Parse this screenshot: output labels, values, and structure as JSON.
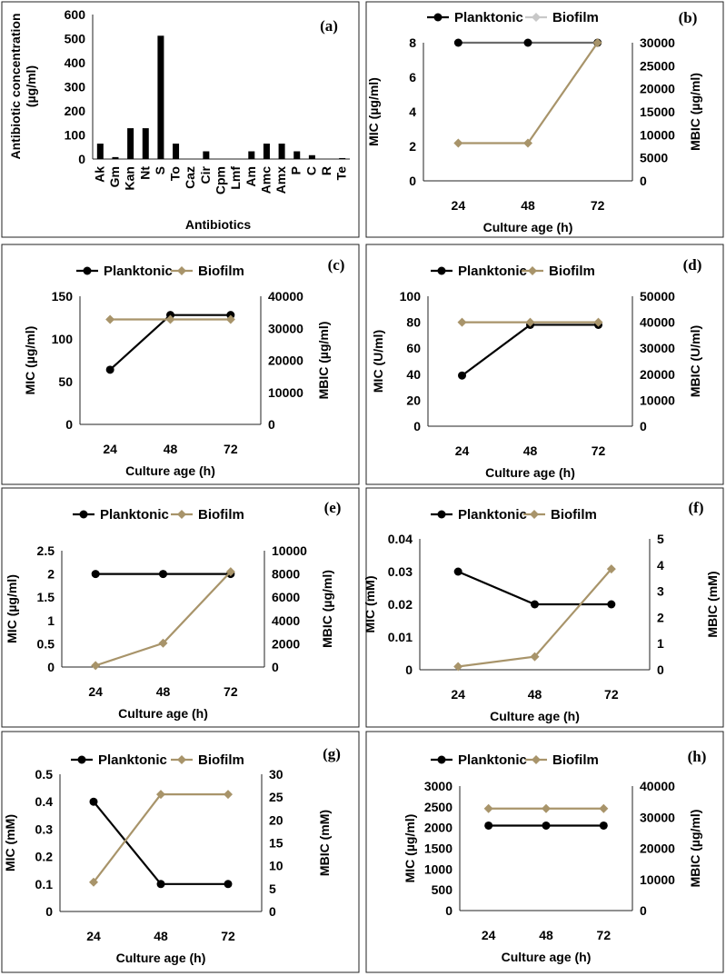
{
  "chart_data": [
    {
      "panel": "(a)",
      "type": "bar",
      "categories": [
        "Ak",
        "Gm",
        "Kan",
        "Nt",
        "S",
        "To",
        "Caz",
        "Cir",
        "Cpm",
        "Lmf",
        "Am",
        "Amc",
        "Amx",
        "P",
        "C",
        "R",
        "Te"
      ],
      "values": [
        64,
        8,
        128,
        128,
        512,
        64,
        0,
        32,
        0,
        0,
        32,
        64,
        64,
        32,
        16,
        0,
        4
      ],
      "title": "",
      "xlabel": "Antibiotics",
      "ylabel_lines": [
        "Antibiotic concentration",
        "(µg/ml)"
      ],
      "ylim": [
        0,
        600
      ],
      "yticks": [
        "0",
        "100",
        "200",
        "300",
        "400",
        "500",
        "600"
      ],
      "color": "#000000"
    },
    {
      "panel": "(b)",
      "type": "line",
      "x": [
        "24",
        "48",
        "72"
      ],
      "xlabel": "Culture age (h)",
      "ylabel_left": "MIC (µg/ml)",
      "ylabel_right": "MBIC (µg/ml)",
      "ylim_left": [
        0,
        8
      ],
      "yticks_left": [
        "0",
        "2",
        "4",
        "6",
        "8"
      ],
      "ylim_right": [
        0,
        30000
      ],
      "yticks_right": [
        "0",
        "5000",
        "10000",
        "15000",
        "20000",
        "25000",
        "30000"
      ],
      "series": [
        {
          "name": "Planktonic",
          "axis": "left",
          "values": [
            8,
            8,
            8
          ],
          "color": "#000000",
          "line_color": "#6b6b6b",
          "marker": "circle"
        },
        {
          "name": "Biofilm",
          "axis": "right",
          "values": [
            8192,
            8192,
            30000
          ],
          "color": "#a8946a",
          "legend_color": "#c8c8c8",
          "marker": "diamond"
        }
      ]
    },
    {
      "panel": "(c)",
      "type": "line",
      "x": [
        "24",
        "48",
        "72"
      ],
      "xlabel": "Culture age (h)",
      "ylabel_left": "MIC (µg/ml)",
      "ylabel_right": "MBIC (µg/ml)",
      "ylim_left": [
        0,
        150
      ],
      "yticks_left": [
        "0",
        "50",
        "100",
        "150"
      ],
      "ylim_right": [
        0,
        40000
      ],
      "yticks_right": [
        "0",
        "10000",
        "20000",
        "30000",
        "40000"
      ],
      "series": [
        {
          "name": "Planktonic",
          "axis": "left",
          "values": [
            64,
            128,
            128
          ],
          "color": "#000000",
          "marker": "circle"
        },
        {
          "name": "Biofilm",
          "axis": "right",
          "values": [
            32768,
            32768,
            32768
          ],
          "color": "#a8946a",
          "marker": "diamond"
        }
      ]
    },
    {
      "panel": "(d)",
      "type": "line",
      "x": [
        "24",
        "48",
        "72"
      ],
      "xlabel": "Culture age (h)",
      "ylabel_left": "MIC (U/ml)",
      "ylabel_right": "MBIC (U/ml)",
      "ylim_left": [
        0,
        100
      ],
      "yticks_left": [
        "0",
        "20",
        "40",
        "60",
        "80",
        "100"
      ],
      "ylim_right": [
        0,
        50000
      ],
      "yticks_right": [
        "0",
        "10000",
        "20000",
        "30000",
        "40000",
        "50000"
      ],
      "series": [
        {
          "name": "Planktonic",
          "axis": "left",
          "values": [
            39,
            78,
            78
          ],
          "color": "#000000",
          "marker": "circle"
        },
        {
          "name": "Biofilm",
          "axis": "right",
          "values": [
            40000,
            40000,
            40000
          ],
          "color": "#a8946a",
          "marker": "diamond"
        }
      ]
    },
    {
      "panel": "(e)",
      "type": "line",
      "x": [
        "24",
        "48",
        "72"
      ],
      "xlabel": "Culture age (h)",
      "ylabel_left": "MIC (µg/ml)",
      "ylabel_right": "MBIC (µg/ml)",
      "ylim_left": [
        0,
        2.5
      ],
      "yticks_left": [
        "0",
        "0.5",
        "1",
        "1.5",
        "2",
        "2.5"
      ],
      "ylim_right": [
        0,
        10000
      ],
      "yticks_right": [
        "0",
        "2000",
        "4000",
        "6000",
        "8000",
        "10000"
      ],
      "series": [
        {
          "name": "Planktonic",
          "axis": "left",
          "values": [
            2,
            2,
            2
          ],
          "color": "#000000",
          "marker": "circle"
        },
        {
          "name": "Biofilm",
          "axis": "right",
          "values": [
            128,
            2048,
            8192
          ],
          "color": "#a8946a",
          "marker": "diamond"
        }
      ]
    },
    {
      "panel": "(f)",
      "type": "line",
      "x": [
        "24",
        "48",
        "72"
      ],
      "xlabel": "Culture age (h)",
      "ylabel_left": "MIC (mM)",
      "ylabel_right": "MBIC (mM)",
      "ylim_left": [
        0,
        0.04
      ],
      "yticks_left": [
        "0",
        "0.01",
        "0.02",
        "0.03",
        "0.04"
      ],
      "ylim_right": [
        0,
        5
      ],
      "yticks_right": [
        "0",
        "1",
        "2",
        "3",
        "4",
        "5"
      ],
      "series": [
        {
          "name": "Planktonic",
          "axis": "left",
          "values": [
            0.03,
            0.02,
            0.02
          ],
          "color": "#000000",
          "marker": "circle"
        },
        {
          "name": "Biofilm",
          "axis": "right",
          "values": [
            0.12,
            0.5,
            3.85
          ],
          "color": "#a8946a",
          "marker": "diamond"
        }
      ]
    },
    {
      "panel": "(g)",
      "type": "line",
      "x": [
        "24",
        "48",
        "72"
      ],
      "xlabel": "Culture age (h)",
      "ylabel_left": "MIC (mM)",
      "ylabel_right": "MBIC (mM)",
      "ylim_left": [
        0,
        0.5
      ],
      "yticks_left": [
        "0",
        "0.1",
        "0.2",
        "0.3",
        "0.4",
        "0.5"
      ],
      "ylim_right": [
        0,
        30
      ],
      "yticks_right": [
        "0",
        "5",
        "10",
        "15",
        "20",
        "25",
        "30"
      ],
      "series": [
        {
          "name": "Planktonic",
          "axis": "left",
          "values": [
            0.4,
            0.1,
            0.1
          ],
          "color": "#000000",
          "marker": "circle"
        },
        {
          "name": "Biofilm",
          "axis": "right",
          "values": [
            6.4,
            25.6,
            25.6
          ],
          "color": "#a8946a",
          "marker": "diamond"
        }
      ]
    },
    {
      "panel": "(h)",
      "type": "line",
      "x": [
        "24",
        "48",
        "72"
      ],
      "xlabel": "Culture age (h)",
      "ylabel_left": "MIC (µg/ml)",
      "ylabel_right": "MBIC (µg/ml)",
      "ylim_left": [
        0,
        3000
      ],
      "yticks_left": [
        "0",
        "500",
        "1000",
        "1500",
        "2000",
        "2500",
        "3000"
      ],
      "ylim_right": [
        0,
        40000
      ],
      "yticks_right": [
        "0",
        "10000",
        "20000",
        "30000",
        "40000"
      ],
      "series": [
        {
          "name": "Planktonic",
          "axis": "left",
          "values": [
            2048,
            2048,
            2048
          ],
          "color": "#000000",
          "marker": "circle"
        },
        {
          "name": "Biofilm",
          "axis": "right",
          "values": [
            32768,
            32768,
            32768
          ],
          "color": "#a8946a",
          "marker": "diamond"
        }
      ]
    }
  ]
}
